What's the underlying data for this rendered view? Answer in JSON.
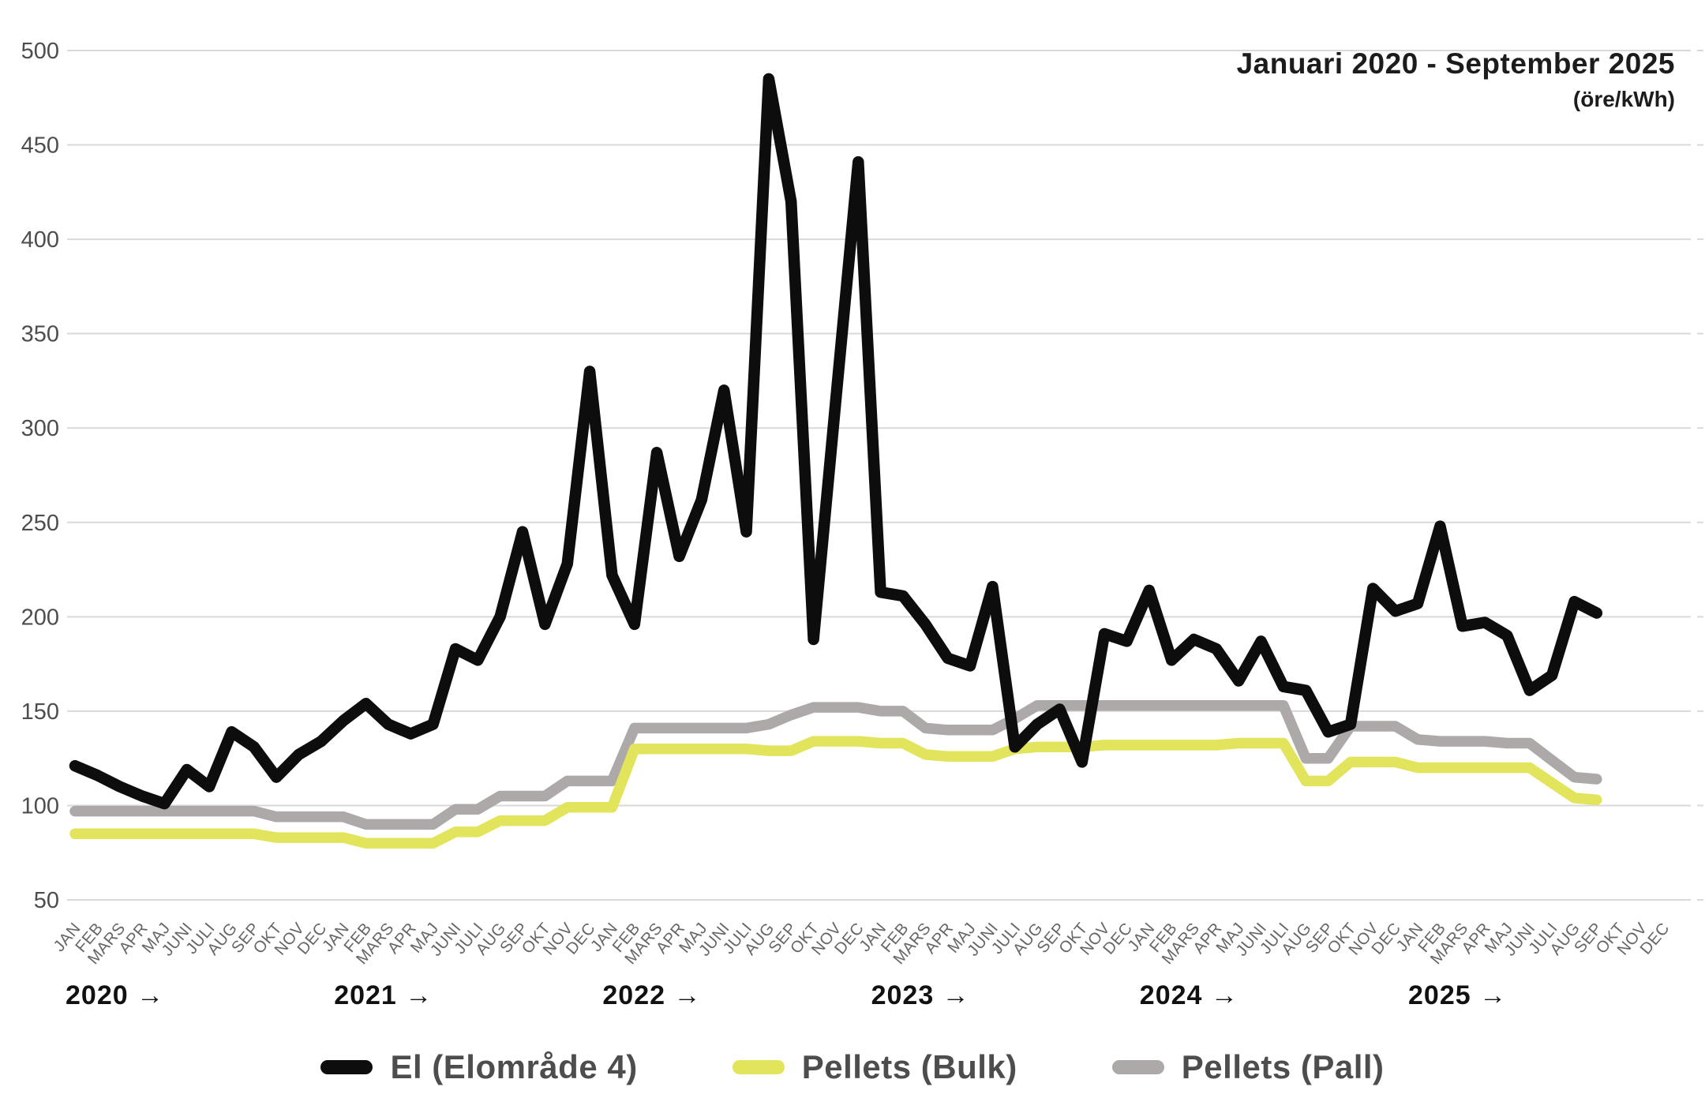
{
  "header": {
    "title": "Januari 2020 - September 2025",
    "subtitle": "(öre/kWh)"
  },
  "chart_data": {
    "type": "line",
    "title": "Januari 2020 - September 2025",
    "unit_label": "(öre/kWh)",
    "ylim": [
      50,
      500
    ],
    "yticks": [
      50,
      100,
      150,
      200,
      250,
      300,
      350,
      400,
      450,
      500
    ],
    "grid": "horizontal",
    "legend_position": "bottom",
    "x_months": [
      "JAN",
      "FEB",
      "MARS",
      "APR",
      "MAJ",
      "JUNI",
      "JULI",
      "AUG",
      "SEP",
      "OKT",
      "NOV",
      "DEC"
    ],
    "years": [
      "2020",
      "2021",
      "2022",
      "2023",
      "2024",
      "2025"
    ],
    "year_arrow": "→",
    "x_axis_span_months": 72,
    "data_span_months": 69,
    "series": [
      {
        "name": "El (Elområde 4)",
        "color": "#0d0d0d",
        "values": [
          121,
          116,
          110,
          105,
          101,
          119,
          110,
          139,
          131,
          115,
          127,
          134,
          145,
          154,
          143,
          138,
          143,
          183,
          177,
          200,
          245,
          196,
          228,
          330,
          222,
          196,
          287,
          232,
          262,
          320,
          245,
          485,
          420,
          188,
          315,
          441,
          213,
          211,
          196,
          178,
          174,
          216,
          131,
          143,
          151,
          123,
          191,
          187,
          214,
          177,
          188,
          183,
          166,
          187,
          163,
          161,
          139,
          143,
          215,
          203,
          207,
          248,
          195,
          197,
          190,
          161,
          169,
          208,
          202
        ]
      },
      {
        "name": "Pellets (Bulk)",
        "color": "#e2e45c",
        "values": [
          85,
          85,
          85,
          85,
          85,
          85,
          85,
          85,
          85,
          83,
          83,
          83,
          83,
          80,
          80,
          80,
          80,
          86,
          86,
          92,
          92,
          92,
          99,
          99,
          99,
          130,
          130,
          130,
          130,
          130,
          130,
          129,
          129,
          134,
          134,
          134,
          133,
          133,
          127,
          126,
          126,
          126,
          130,
          131,
          131,
          131,
          132,
          132,
          132,
          132,
          132,
          132,
          133,
          133,
          133,
          113,
          113,
          123,
          123,
          123,
          120,
          120,
          120,
          120,
          120,
          120,
          112,
          104,
          103
        ]
      },
      {
        "name": "Pellets (Pall)",
        "color": "#ada9a8",
        "values": [
          97,
          97,
          97,
          97,
          97,
          97,
          97,
          97,
          97,
          94,
          94,
          94,
          94,
          90,
          90,
          90,
          90,
          98,
          98,
          105,
          105,
          105,
          113,
          113,
          113,
          141,
          141,
          141,
          141,
          141,
          141,
          143,
          148,
          152,
          152,
          152,
          150,
          150,
          141,
          140,
          140,
          140,
          146,
          153,
          153,
          153,
          153,
          153,
          153,
          153,
          153,
          153,
          153,
          153,
          153,
          125,
          125,
          142,
          142,
          142,
          135,
          134,
          134,
          134,
          133,
          133,
          124,
          115,
          114
        ]
      }
    ]
  },
  "legend": {
    "items": [
      {
        "label": "El (Elområde 4)",
        "color": "#0d0d0d"
      },
      {
        "label": "Pellets (Bulk)",
        "color": "#e2e45c"
      },
      {
        "label": "Pellets (Pall)",
        "color": "#ada9a8"
      }
    ]
  },
  "style": {
    "gridline_color": "#d9d9d9",
    "ytick_color": "#4d4d4d",
    "month_label_color": "#666666",
    "year_label_color": "#111111",
    "background": "#ffffff"
  }
}
